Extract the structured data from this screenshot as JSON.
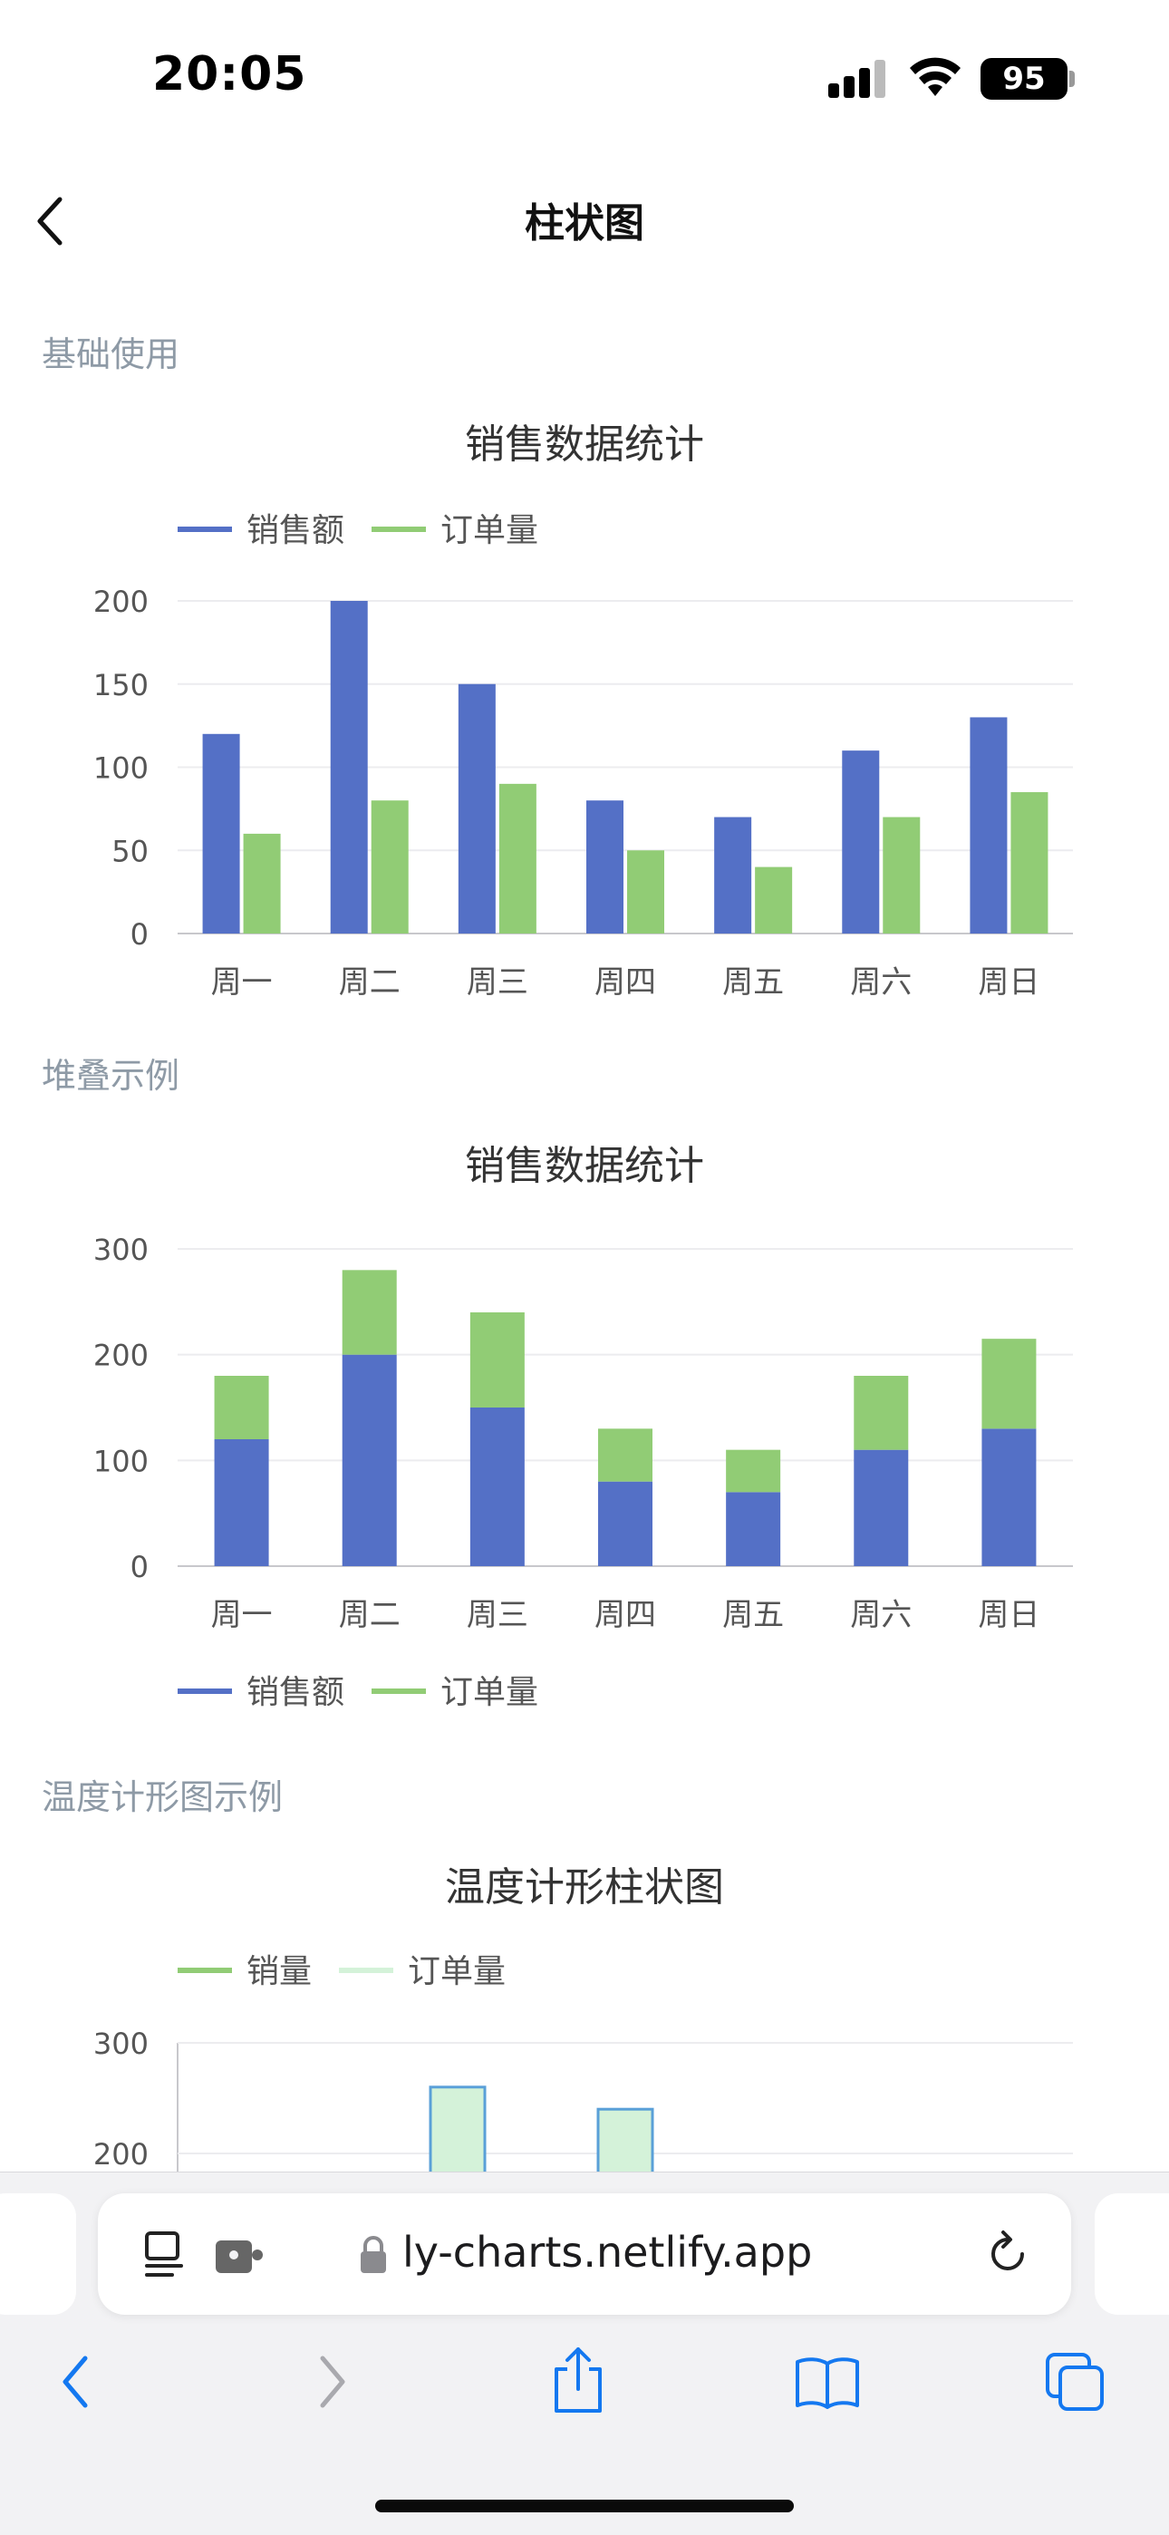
{
  "status_bar": {
    "time": "20:05",
    "battery": "95"
  },
  "nav": {
    "title": "柱状图",
    "back_icon": "chevron-left-icon"
  },
  "sections": [
    {
      "label": "基础使用"
    },
    {
      "label": "堆叠示例"
    },
    {
      "label": "温度计形图示例"
    }
  ],
  "chart_data": [
    {
      "type": "bar",
      "title": "销售数据统计",
      "categories": [
        "周一",
        "周二",
        "周三",
        "周四",
        "周五",
        "周六",
        "周日"
      ],
      "series": [
        {
          "name": "销售额",
          "values": [
            120,
            200,
            150,
            80,
            70,
            110,
            130
          ],
          "color": "#5470c6"
        },
        {
          "name": "订单量",
          "values": [
            60,
            80,
            90,
            50,
            40,
            70,
            85
          ],
          "color": "#91cc75"
        }
      ],
      "ylim": [
        0,
        200
      ],
      "yticks": [
        0,
        50,
        100,
        150,
        200
      ],
      "legend": "top-left",
      "grid": true
    },
    {
      "type": "bar",
      "stacked": true,
      "title": "销售数据统计",
      "categories": [
        "周一",
        "周二",
        "周三",
        "周四",
        "周五",
        "周六",
        "周日"
      ],
      "series": [
        {
          "name": "销售额",
          "values": [
            120,
            200,
            150,
            80,
            70,
            110,
            130
          ],
          "color": "#5470c6"
        },
        {
          "name": "订单量",
          "values": [
            60,
            80,
            90,
            50,
            40,
            70,
            85
          ],
          "color": "#91cc75"
        }
      ],
      "ylim": [
        0,
        300
      ],
      "yticks": [
        0,
        100,
        200,
        300
      ],
      "legend": "bottom-left",
      "grid": true
    },
    {
      "type": "bar",
      "title": "温度计形柱状图",
      "series": [
        {
          "name": "销量",
          "color": "#91cc75"
        },
        {
          "name": "订单量",
          "color": "#d4f2d9"
        }
      ],
      "visible_bars": [
        260,
        240
      ],
      "ylim": [
        0,
        300
      ],
      "yticks": [
        200,
        300
      ],
      "legend": "top-left",
      "grid": true
    }
  ],
  "browser": {
    "url": "ly-charts.netlify.app",
    "toolbar_icons": [
      "reader-icon",
      "extension-icon",
      "lock-icon",
      "reload-icon",
      "back-arrow-icon",
      "forward-arrow-icon",
      "share-icon",
      "bookmarks-icon",
      "tabs-icon"
    ]
  }
}
